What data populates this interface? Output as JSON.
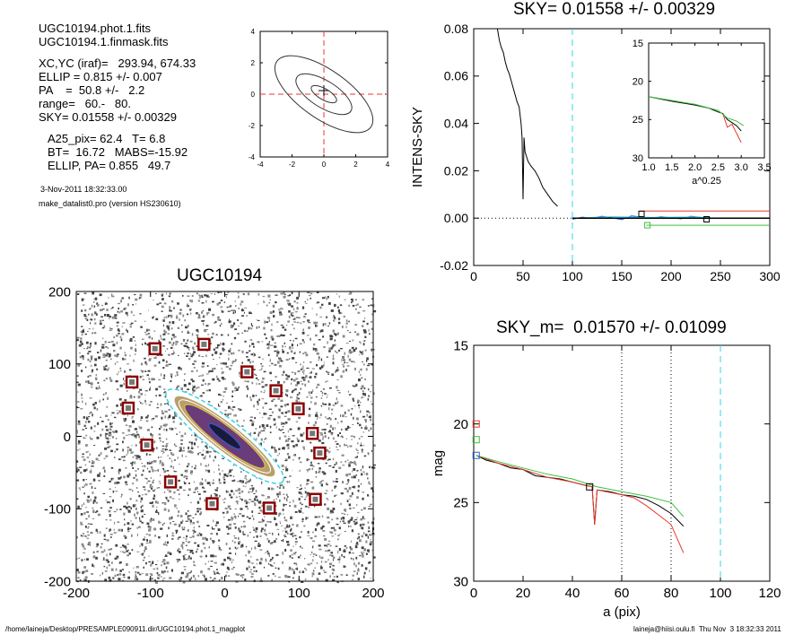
{
  "info": {
    "files": [
      "UGC10194.phot.1.fits",
      "UGC10194.1.finmask.fits"
    ],
    "params": [
      "XC,YC (iraf)=   293.94, 674.33",
      "ELLIP = 0.815 +/- 0.007",
      "PA    =  50.8 +/-   2.2",
      "range=   60.-   80.",
      "SKY= 0.01558 +/- 0.00329"
    ],
    "results": [
      "A25_pix= 62.4   T= 6.8",
      "BT=  16.72   MABS=-15.92",
      "ELLIP, PA= 0.855   49.7"
    ],
    "date": "3-Nov-2011 18:32:33.00",
    "program": "make_datalist0.pro (version HS230610)"
  },
  "footer": {
    "path": "/home/laineja/Desktop/PRESAMPLE090911.dir/UGC10194.phot.1_magplot",
    "user": "laineja@hiisi.oulu.fi  Thu Nov  3 18:32:33 2011"
  },
  "colors": {
    "black": "#000000",
    "red": "#e8372c",
    "green": "#3cc23c",
    "blue": "#2a5fd6",
    "cyan": "#37d4e6",
    "darkred": "#8b0000",
    "yellow": "#e8c43a",
    "purple": "#6a3d7a"
  },
  "chart_data": [
    {
      "id": "contour",
      "type": "contour",
      "xlim": [
        -4,
        4
      ],
      "ylim": [
        -4,
        4
      ],
      "x_ticks": [
        "-4",
        "-2",
        "0",
        "2",
        "4"
      ],
      "y_ticks": [
        "-4",
        "-2",
        "0",
        "2",
        "4"
      ],
      "contours": [
        {
          "rx": 0.9,
          "ry": 0.35,
          "angle": -30
        },
        {
          "rx": 2.0,
          "ry": 0.85,
          "angle": -32
        },
        {
          "rx": 3.6,
          "ry": 1.55,
          "angle": -35
        }
      ]
    },
    {
      "id": "sky",
      "type": "line",
      "title": "SKY= 0.01558 +/- 0.00329",
      "ylabel": "INTENS-SKY",
      "xlim": [
        0,
        300
      ],
      "ylim": [
        -0.02,
        0.08
      ],
      "x_ticks": [
        "0",
        "50",
        "100",
        "150",
        "200",
        "250",
        "300"
      ],
      "y_ticks": [
        "-0.02",
        "0.00",
        "0.02",
        "0.04",
        "0.06",
        "0.08"
      ],
      "vline_x": 100,
      "series": [
        {
          "color": "black",
          "points": [
            [
              24,
              0.08
            ],
            [
              26,
              0.075
            ],
            [
              28,
              0.072
            ],
            [
              30,
              0.07
            ],
            [
              32,
              0.066
            ],
            [
              34,
              0.063
            ],
            [
              36,
              0.061
            ],
            [
              38,
              0.058
            ],
            [
              40,
              0.055
            ],
            [
              42,
              0.052
            ],
            [
              44,
              0.049
            ],
            [
              46,
              0.047
            ],
            [
              48,
              0.04
            ],
            [
              49,
              0.034
            ],
            [
              50,
              0.008
            ],
            [
              51,
              0.034
            ],
            [
              52,
              0.028
            ],
            [
              55,
              0.024
            ],
            [
              58,
              0.022
            ],
            [
              62,
              0.02
            ],
            [
              66,
              0.017
            ],
            [
              70,
              0.013
            ],
            [
              75,
              0.01
            ],
            [
              80,
              0.007
            ],
            [
              85,
              0.005
            ]
          ]
        },
        {
          "color": "blue",
          "points": [
            [
              100,
              -0.0005
            ],
            [
              110,
              0.0004
            ],
            [
              120,
              0.0
            ],
            [
              130,
              0.0008
            ],
            [
              140,
              0.0002
            ],
            [
              150,
              -0.0006
            ],
            [
              160,
              0.001
            ],
            [
              170,
              0.0004
            ],
            [
              180,
              0.0
            ],
            [
              190,
              0.0006
            ],
            [
              200,
              0.0002
            ],
            [
              210,
              -0.0003
            ],
            [
              220,
              0.0008
            ],
            [
              230,
              0.0003
            ],
            [
              240,
              0.0
            ],
            [
              260,
              0.0
            ]
          ]
        },
        {
          "color": "cyan",
          "points": [
            [
              100,
              0.0
            ],
            [
              140,
              0.0006
            ],
            [
              180,
              0.0003
            ],
            [
              220,
              0.0005
            ],
            [
              240,
              0.0002
            ]
          ]
        },
        {
          "color": "red",
          "points": [
            [
              168,
              0.003
            ],
            [
              300,
              0.003
            ]
          ]
        },
        {
          "color": "green",
          "points": [
            [
              175,
              -0.003
            ],
            [
              300,
              -0.003
            ]
          ]
        },
        {
          "color": "black",
          "points": [
            [
              100,
              0.0
            ],
            [
              300,
              0.0
            ]
          ]
        }
      ],
      "markers": [
        {
          "x": 170,
          "y": 0.0018,
          "color": "black"
        },
        {
          "x": 236,
          "y": -0.0005,
          "color": "black"
        },
        {
          "x": 176,
          "y": -0.003,
          "color": "green"
        }
      ]
    },
    {
      "id": "inset",
      "type": "line",
      "xlabel": "a^0.25",
      "xlim": [
        1.0,
        3.5
      ],
      "ylim": [
        30,
        15
      ],
      "x_ticks": [
        "1.0",
        "1.5",
        "2.0",
        "2.5",
        "3.0",
        "3.5"
      ],
      "y_ticks": [
        "15",
        "20",
        "25",
        "30"
      ],
      "series": [
        {
          "color": "black",
          "points": [
            [
              1.0,
              22.0
            ],
            [
              1.5,
              22.6
            ],
            [
              2.0,
              23.1
            ],
            [
              2.3,
              23.5
            ],
            [
              2.5,
              24.0
            ],
            [
              2.6,
              24.2
            ],
            [
              2.7,
              25.0
            ],
            [
              2.8,
              25.4
            ],
            [
              2.9,
              25.8
            ],
            [
              3.0,
              26.5
            ]
          ]
        },
        {
          "color": "red",
          "points": [
            [
              2.6,
              24.2
            ],
            [
              2.7,
              26.0
            ],
            [
              2.8,
              25.6
            ],
            [
              2.9,
              26.8
            ],
            [
              3.0,
              28.0
            ]
          ]
        },
        {
          "color": "green",
          "points": [
            [
              1.0,
              22.0
            ],
            [
              1.5,
              22.5
            ],
            [
              2.0,
              23.0
            ],
            [
              2.5,
              23.8
            ],
            [
              2.7,
              24.8
            ],
            [
              2.9,
              25.2
            ],
            [
              3.05,
              25.8
            ]
          ]
        }
      ]
    },
    {
      "id": "image",
      "type": "image",
      "title": "UGC10194",
      "xlim": [
        -200,
        200
      ],
      "ylim": [
        -200,
        200
      ],
      "x_ticks": [
        "-200",
        "-100",
        "0",
        "100",
        "200"
      ],
      "y_ticks": [
        "-200",
        "-100",
        "0",
        "100",
        "200"
      ],
      "stars": [
        [
          -94,
          121
        ],
        [
          -28,
          127
        ],
        [
          30,
          89
        ],
        [
          -125,
          75
        ],
        [
          69,
          63
        ],
        [
          -130,
          39
        ],
        [
          99,
          38
        ],
        [
          118,
          4
        ],
        [
          -105,
          -12
        ],
        [
          128,
          -23
        ],
        [
          -73,
          -63
        ],
        [
          -17,
          -93
        ],
        [
          60,
          -99
        ],
        [
          122,
          -87
        ]
      ]
    },
    {
      "id": "mag",
      "type": "line",
      "title": "SKY_m=  0.01570 +/- 0.01099",
      "xlabel": "a (pix)",
      "ylabel": "mag",
      "xlim": [
        0,
        120
      ],
      "ylim": [
        30,
        15
      ],
      "x_ticks": [
        "0",
        "20",
        "40",
        "60",
        "80",
        "100",
        "120"
      ],
      "y_ticks": [
        "15",
        "20",
        "25",
        "30"
      ],
      "vlines_dotted": [
        60,
        80
      ],
      "vline_cyan": 100,
      "series": [
        {
          "color": "black",
          "points": [
            [
              1,
              22.0
            ],
            [
              5,
              22.3
            ],
            [
              10,
              22.5
            ],
            [
              15,
              22.8
            ],
            [
              20,
              22.9
            ],
            [
              25,
              23.3
            ],
            [
              30,
              23.4
            ],
            [
              35,
              23.5
            ],
            [
              40,
              23.7
            ],
            [
              45,
              23.9
            ],
            [
              48,
              24.0
            ],
            [
              49,
              26.4
            ],
            [
              50,
              24.2
            ],
            [
              55,
              24.3
            ],
            [
              60,
              24.5
            ],
            [
              65,
              24.6
            ],
            [
              70,
              24.8
            ],
            [
              75,
              25.2
            ],
            [
              80,
              25.7
            ],
            [
              85,
              26.5
            ]
          ]
        },
        {
          "color": "red",
          "points": [
            [
              1,
              22.0
            ],
            [
              10,
              22.5
            ],
            [
              20,
              22.9
            ],
            [
              30,
              23.4
            ],
            [
              40,
              23.7
            ],
            [
              48,
              24.0
            ],
            [
              49,
              26.4
            ],
            [
              50,
              24.2
            ],
            [
              60,
              24.5
            ],
            [
              65,
              24.7
            ],
            [
              70,
              25.2
            ],
            [
              75,
              25.8
            ],
            [
              80,
              26.4
            ],
            [
              85,
              28.2
            ]
          ]
        },
        {
          "color": "green",
          "points": [
            [
              1,
              22.0
            ],
            [
              10,
              22.4
            ],
            [
              20,
              22.8
            ],
            [
              30,
              23.2
            ],
            [
              40,
              23.5
            ],
            [
              48,
              23.9
            ],
            [
              50,
              24.0
            ],
            [
              60,
              24.3
            ],
            [
              70,
              24.6
            ],
            [
              80,
              25.0
            ],
            [
              85,
              25.9
            ]
          ]
        }
      ],
      "markers": [
        {
          "x": 1,
          "y": 20.0,
          "color": "red"
        },
        {
          "x": 1,
          "y": 21.0,
          "color": "green"
        },
        {
          "x": 1,
          "y": 22.0,
          "color": "blue"
        },
        {
          "x": 47,
          "y": 24.0,
          "color": "black"
        }
      ]
    }
  ]
}
